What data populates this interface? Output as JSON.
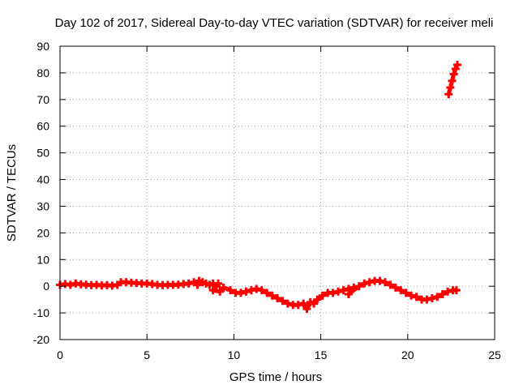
{
  "chart_data": {
    "type": "scatter",
    "title": "Day 102 of 2017, Sidereal Day-to-day VTEC variation (SDTVAR) for receiver meli",
    "xlabel": "GPS time / hours",
    "ylabel": "SDTVAR / TECUs",
    "xlim": [
      0,
      25
    ],
    "ylim": [
      -20,
      90
    ],
    "xticks": [
      0,
      5,
      10,
      15,
      20,
      25
    ],
    "yticks": [
      -20,
      -10,
      0,
      10,
      20,
      30,
      40,
      50,
      60,
      70,
      80,
      90
    ],
    "grid": true,
    "series": [
      {
        "name": "SDTVAR",
        "color": "#ff0000",
        "marker": "plus",
        "points": [
          [
            0.0,
            0.5
          ],
          [
            0.3,
            0.8
          ],
          [
            0.6,
            0.5
          ],
          [
            0.9,
            1.0
          ],
          [
            1.2,
            0.7
          ],
          [
            1.5,
            0.6
          ],
          [
            1.8,
            0.4
          ],
          [
            2.1,
            0.5
          ],
          [
            2.4,
            0.3
          ],
          [
            2.7,
            0.4
          ],
          [
            3.0,
            0.2
          ],
          [
            3.3,
            0.5
          ],
          [
            3.5,
            1.5
          ],
          [
            3.8,
            1.5
          ],
          [
            4.1,
            1.3
          ],
          [
            4.4,
            1.2
          ],
          [
            4.7,
            1.0
          ],
          [
            5.0,
            1.0
          ],
          [
            5.3,
            0.8
          ],
          [
            5.6,
            0.5
          ],
          [
            5.9,
            0.4
          ],
          [
            6.2,
            0.5
          ],
          [
            6.5,
            0.5
          ],
          [
            6.8,
            0.6
          ],
          [
            7.1,
            0.8
          ],
          [
            7.4,
            1.0
          ],
          [
            7.7,
            1.5
          ],
          [
            7.9,
            0.5
          ],
          [
            8.0,
            2.0
          ],
          [
            8.2,
            1.5
          ],
          [
            8.4,
            1.0
          ],
          [
            8.6,
            0.5
          ],
          [
            8.8,
            1.0
          ],
          [
            9.0,
            0.0
          ],
          [
            9.1,
            1.0
          ],
          [
            8.8,
            -1.5
          ],
          [
            9.2,
            -2.0
          ],
          [
            9.4,
            -0.5
          ],
          [
            9.8,
            -1.5
          ],
          [
            10.1,
            -2.5
          ],
          [
            10.4,
            -2.5
          ],
          [
            10.7,
            -2.0
          ],
          [
            11.0,
            -1.5
          ],
          [
            11.3,
            -1.0
          ],
          [
            11.6,
            -1.5
          ],
          [
            11.9,
            -2.5
          ],
          [
            12.2,
            -3.5
          ],
          [
            12.5,
            -4.5
          ],
          [
            12.8,
            -5.5
          ],
          [
            13.1,
            -6.5
          ],
          [
            13.4,
            -7.0
          ],
          [
            13.7,
            -7.0
          ],
          [
            14.0,
            -6.5
          ],
          [
            14.2,
            -8.5
          ],
          [
            14.4,
            -6.0
          ],
          [
            14.6,
            -6.5
          ],
          [
            14.8,
            -5.0
          ],
          [
            15.1,
            -3.5
          ],
          [
            15.4,
            -2.5
          ],
          [
            15.7,
            -2.5
          ],
          [
            16.0,
            -2.0
          ],
          [
            16.3,
            -1.5
          ],
          [
            16.6,
            -1.0
          ],
          [
            16.9,
            -0.5
          ],
          [
            16.6,
            -3.0
          ],
          [
            17.2,
            0.0
          ],
          [
            17.5,
            1.0
          ],
          [
            17.8,
            1.5
          ],
          [
            18.1,
            2.0
          ],
          [
            18.4,
            2.0
          ],
          [
            18.7,
            1.5
          ],
          [
            19.0,
            0.5
          ],
          [
            19.3,
            -0.5
          ],
          [
            19.6,
            -1.5
          ],
          [
            19.9,
            -2.5
          ],
          [
            20.2,
            -3.5
          ],
          [
            20.5,
            -4.0
          ],
          [
            20.8,
            -5.0
          ],
          [
            21.1,
            -5.0
          ],
          [
            21.4,
            -4.5
          ],
          [
            21.7,
            -4.0
          ],
          [
            22.0,
            -3.0
          ],
          [
            22.3,
            -2.0
          ],
          [
            22.6,
            -1.5
          ],
          [
            22.8,
            -1.5
          ],
          [
            22.35,
            72.0
          ],
          [
            22.45,
            74.5
          ],
          [
            22.55,
            77.0
          ],
          [
            22.65,
            79.5
          ],
          [
            22.75,
            81.5
          ],
          [
            22.85,
            83.0
          ]
        ]
      }
    ]
  }
}
